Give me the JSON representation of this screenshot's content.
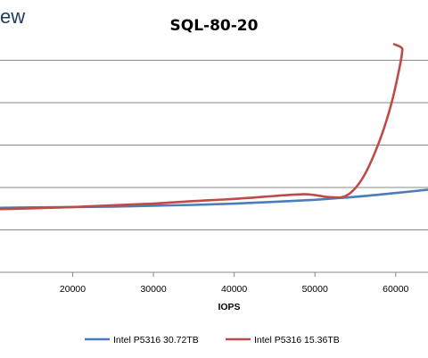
{
  "watermark": "ew",
  "chart_data": {
    "type": "line",
    "title": "SQL-80-20",
    "xlabel": "IOPS",
    "ylabel": "",
    "xlim": [
      11000,
      64000
    ],
    "ylim": [
      0,
      6
    ],
    "x_ticks": [
      20000,
      30000,
      40000,
      50000,
      60000
    ],
    "y_gridlines": [
      1,
      2,
      3,
      4,
      5
    ],
    "grid": "horizontal",
    "legend": "bottom",
    "series": [
      {
        "name": "Intel P5316 30.72TB",
        "color": "#4a7ebb",
        "points": [
          [
            11000,
            1.52
          ],
          [
            15000,
            1.53
          ],
          [
            20000,
            1.54
          ],
          [
            25000,
            1.55
          ],
          [
            30000,
            1.57
          ],
          [
            35000,
            1.59
          ],
          [
            40000,
            1.62
          ],
          [
            45000,
            1.66
          ],
          [
            50000,
            1.71
          ],
          [
            55000,
            1.78
          ],
          [
            60000,
            1.87
          ],
          [
            64000,
            1.95
          ]
        ]
      },
      {
        "name": "Intel P5316 15.36TB",
        "color": "#be4b48",
        "points": [
          [
            11000,
            1.49
          ],
          [
            15000,
            1.51
          ],
          [
            20000,
            1.54
          ],
          [
            25000,
            1.58
          ],
          [
            30000,
            1.62
          ],
          [
            35000,
            1.68
          ],
          [
            40000,
            1.73
          ],
          [
            45000,
            1.8
          ],
          [
            48500,
            1.84
          ],
          [
            50000,
            1.82
          ],
          [
            52000,
            1.77
          ],
          [
            54000,
            1.82
          ],
          [
            56000,
            2.25
          ],
          [
            58000,
            3.1
          ],
          [
            59500,
            4.0
          ],
          [
            60500,
            4.85
          ],
          [
            60800,
            5.2
          ],
          [
            60700,
            5.3
          ],
          [
            59800,
            5.38
          ]
        ]
      }
    ]
  }
}
